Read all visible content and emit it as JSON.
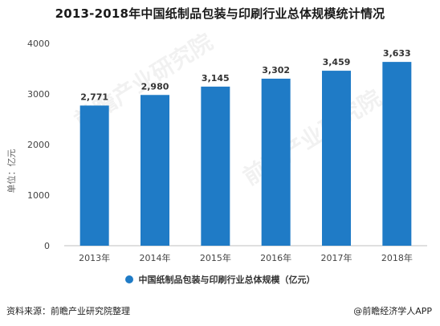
{
  "chart_data": {
    "type": "bar",
    "title": "2013-2018年中国纸制品包装与印刷行业总体规模统计情况",
    "categories": [
      "2013年",
      "2014年",
      "2015年",
      "2016年",
      "2017年",
      "2018年"
    ],
    "series": [
      {
        "name": "中国纸制品包装与印刷行业总体规模（亿元）",
        "values": [
          2771,
          2980,
          3145,
          3302,
          3459,
          3633
        ],
        "labels": [
          "2,771",
          "2,980",
          "3,145",
          "3,302",
          "3,459",
          "3,633"
        ],
        "color": "#1f7bc6"
      }
    ],
    "ylabel": "单位：亿元",
    "ylim": [
      0,
      4000
    ],
    "yticks": [
      0,
      1000,
      2000,
      3000,
      4000
    ],
    "grid": false,
    "legend_position": "bottom"
  },
  "footer": {
    "source": "资料来源：前瞻产业研究院整理",
    "brand": "@前瞻经济学人APP"
  },
  "watermark": {
    "text": "前瞻产业研究院"
  }
}
